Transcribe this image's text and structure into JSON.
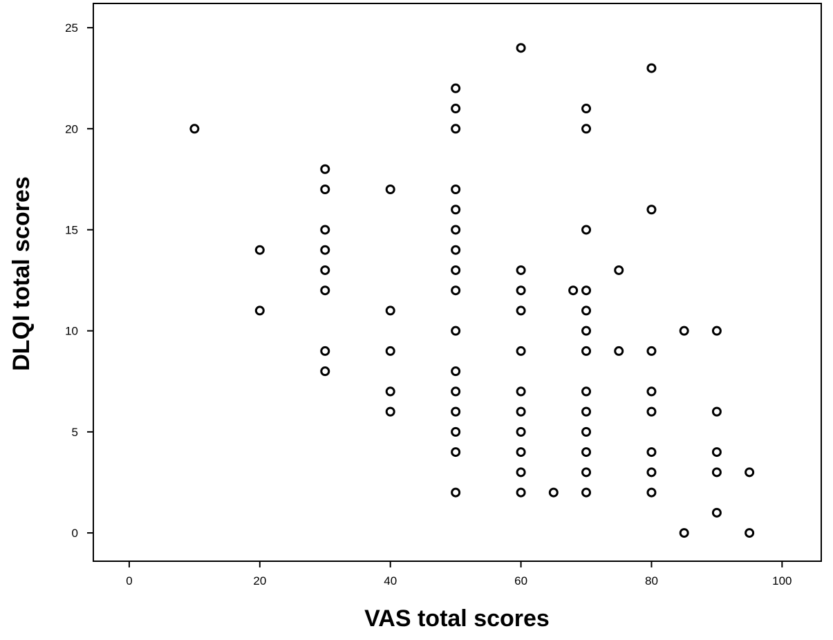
{
  "chart_data": {
    "type": "scatter",
    "title": "",
    "xlabel": "VAS total scores",
    "ylabel": "DLQI total scores",
    "xlim": [
      -5.5,
      106
    ],
    "ylim": [
      -1.4,
      26.2
    ],
    "xticks": [
      0,
      20,
      40,
      60,
      80,
      100
    ],
    "yticks": [
      0,
      5,
      10,
      15,
      20,
      25
    ],
    "grid": false,
    "legend": "none",
    "marker": "open-circle",
    "series": [
      {
        "points": [
          [
            10,
            20
          ],
          [
            20,
            14
          ],
          [
            20,
            11
          ],
          [
            30,
            18
          ],
          [
            30,
            17
          ],
          [
            30,
            15
          ],
          [
            30,
            14
          ],
          [
            30,
            13
          ],
          [
            30,
            12
          ],
          [
            30,
            9
          ],
          [
            30,
            8
          ],
          [
            40,
            17
          ],
          [
            40,
            11
          ],
          [
            40,
            9
          ],
          [
            40,
            7
          ],
          [
            40,
            6
          ],
          [
            50,
            22
          ],
          [
            50,
            21
          ],
          [
            50,
            20
          ],
          [
            50,
            17
          ],
          [
            50,
            16
          ],
          [
            50,
            15
          ],
          [
            50,
            14
          ],
          [
            50,
            13
          ],
          [
            50,
            12
          ],
          [
            50,
            10
          ],
          [
            50,
            8
          ],
          [
            50,
            7
          ],
          [
            50,
            6
          ],
          [
            50,
            5
          ],
          [
            50,
            4
          ],
          [
            50,
            2
          ],
          [
            60,
            24
          ],
          [
            60,
            13
          ],
          [
            60,
            12
          ],
          [
            60,
            11
          ],
          [
            60,
            9
          ],
          [
            60,
            7
          ],
          [
            60,
            6
          ],
          [
            60,
            5
          ],
          [
            60,
            4
          ],
          [
            60,
            3
          ],
          [
            60,
            2
          ],
          [
            65,
            2
          ],
          [
            68,
            12
          ],
          [
            70,
            21
          ],
          [
            70,
            20
          ],
          [
            70,
            15
          ],
          [
            70,
            12
          ],
          [
            70,
            11
          ],
          [
            70,
            10
          ],
          [
            70,
            9
          ],
          [
            70,
            7
          ],
          [
            70,
            6
          ],
          [
            70,
            5
          ],
          [
            70,
            4
          ],
          [
            70,
            3
          ],
          [
            70,
            2
          ],
          [
            75,
            13
          ],
          [
            75,
            9
          ],
          [
            80,
            23
          ],
          [
            80,
            16
          ],
          [
            80,
            9
          ],
          [
            80,
            7
          ],
          [
            80,
            6
          ],
          [
            80,
            4
          ],
          [
            80,
            3
          ],
          [
            80,
            2
          ],
          [
            85,
            10
          ],
          [
            85,
            0
          ],
          [
            90,
            10
          ],
          [
            90,
            6
          ],
          [
            90,
            4
          ],
          [
            90,
            3
          ],
          [
            90,
            1
          ],
          [
            95,
            3
          ],
          [
            95,
            0
          ]
        ]
      }
    ]
  }
}
